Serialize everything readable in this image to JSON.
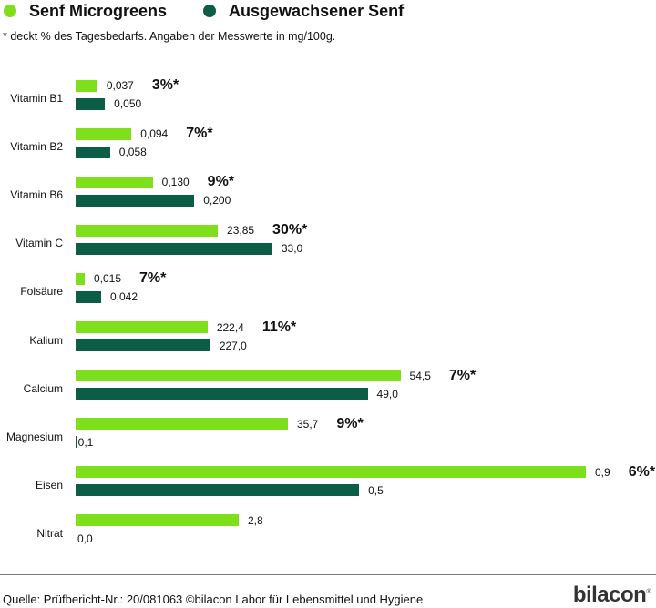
{
  "colors": {
    "microgreens": "#7ee01b",
    "grown": "#0b5e45"
  },
  "legend": {
    "microgreens": "Senf Microgreens",
    "grown": "Ausgewachsener Senf"
  },
  "note": "* deckt % des Tagesbedarfs. Angaben der Messwerte in mg/100g.",
  "source": "Quelle: Prüfbericht-Nr.: 20/081063 ©bilacon Labor für Lebensmittel und Hygiene",
  "logo": "bilacon",
  "chart_data": {
    "type": "bar",
    "orientation": "horizontal",
    "title": "",
    "categories": [
      "Vitamin B1",
      "Vitamin B2",
      "Vitamin B6",
      "Vitamin C",
      "Folsäure",
      "Kalium",
      "Calcium",
      "Magnesium",
      "Eisen",
      "Nitrat"
    ],
    "series": [
      {
        "name": "Senf Microgreens",
        "values": [
          0.037,
          0.094,
          0.13,
          23.85,
          0.015,
          222.4,
          54.5,
          35.7,
          0.9,
          2.8
        ],
        "labels": [
          "0,037",
          "0,094",
          "0,130",
          "23,85",
          "0,015",
          "222,4",
          "54,5",
          "35,7",
          "0,9",
          "2,8"
        ]
      },
      {
        "name": "Ausgewachsener Senf",
        "values": [
          0.05,
          0.058,
          0.2,
          33.0,
          0.042,
          227.0,
          49.0,
          0.1,
          0.5,
          0.0
        ],
        "labels": [
          "0,050",
          "0,058",
          "0,200",
          "33,0",
          "0,042",
          "227,0",
          "49,0",
          "0,1",
          "0,5",
          "0,0"
        ]
      }
    ],
    "daily_value_labels": [
      "3%*",
      "7%*",
      "9%*",
      "30%*",
      "7%*",
      "11%*",
      "7%*",
      "9%*",
      "6%*",
      ""
    ],
    "per_category_axis_max": [
      0.87,
      0.86,
      0.86,
      85.6,
      0.84,
      860,
      85.6,
      85.8,
      0.9,
      8.76
    ],
    "grid": false,
    "legend_position": "top-left"
  }
}
